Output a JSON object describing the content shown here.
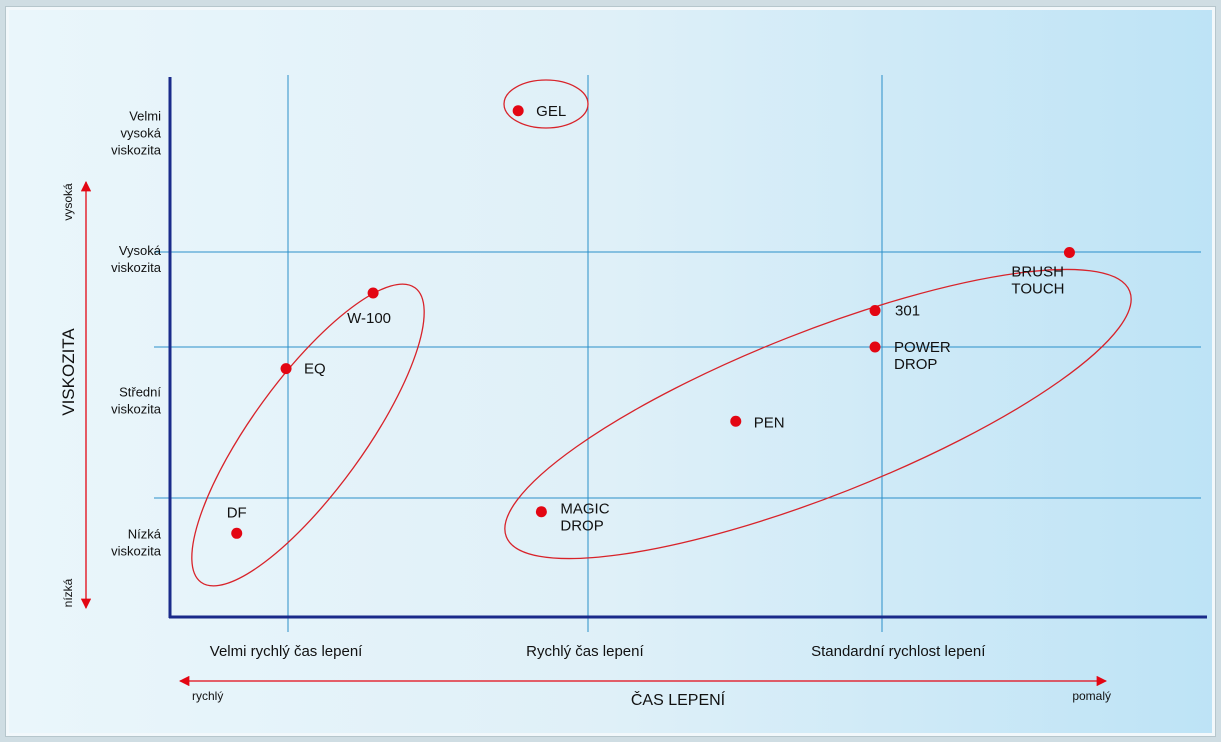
{
  "chart_data": {
    "type": "scatter",
    "title": "",
    "xlabel": "ČAS LEPENÍ",
    "ylabel": "VISKOZITA",
    "x_arrow": {
      "left": "rychlý",
      "right": "pomalý"
    },
    "y_arrow": {
      "top": "vysoká",
      "bottom": "nízká"
    },
    "x_categories": [
      "Velmi rychlý čas lepení",
      "Rychlý čas lepení",
      "Standardní rychlost lepení"
    ],
    "y_categories": [
      "Nízká viskozita",
      "Střední viskozita",
      "Vysoká viskozita",
      "Velmi vysoká viskozita"
    ],
    "xlim": [
      0,
      3.55
    ],
    "ylim": [
      0,
      4
    ],
    "grid": true,
    "colors": {
      "point": "#e30613",
      "ellipse": "#d8232a",
      "grid": "#2b8fc9",
      "axis": "#1a2a8a",
      "arrow": "#e30613"
    },
    "points": [
      {
        "label": [
          "GEL"
        ],
        "x": 1.2,
        "y": 3.75
      },
      {
        "label": [
          "W-100"
        ],
        "x": 0.7,
        "y": 2.4
      },
      {
        "label": [
          "EQ"
        ],
        "x": 0.4,
        "y": 1.84
      },
      {
        "label": [
          "DF"
        ],
        "x": 0.23,
        "y": 0.62
      },
      {
        "label": [
          "MAGIC",
          "DROP"
        ],
        "x": 1.28,
        "y": 0.78
      },
      {
        "label": [
          "PEN"
        ],
        "x": 1.95,
        "y": 1.45
      },
      {
        "label": [
          "POWER",
          "DROP"
        ],
        "x": 2.43,
        "y": 2.0
      },
      {
        "label": [
          "301"
        ],
        "x": 2.43,
        "y": 2.27
      },
      {
        "label": [
          "BRUSH",
          "TOUCH"
        ],
        "x": 3.1,
        "y": 2.7
      }
    ]
  }
}
